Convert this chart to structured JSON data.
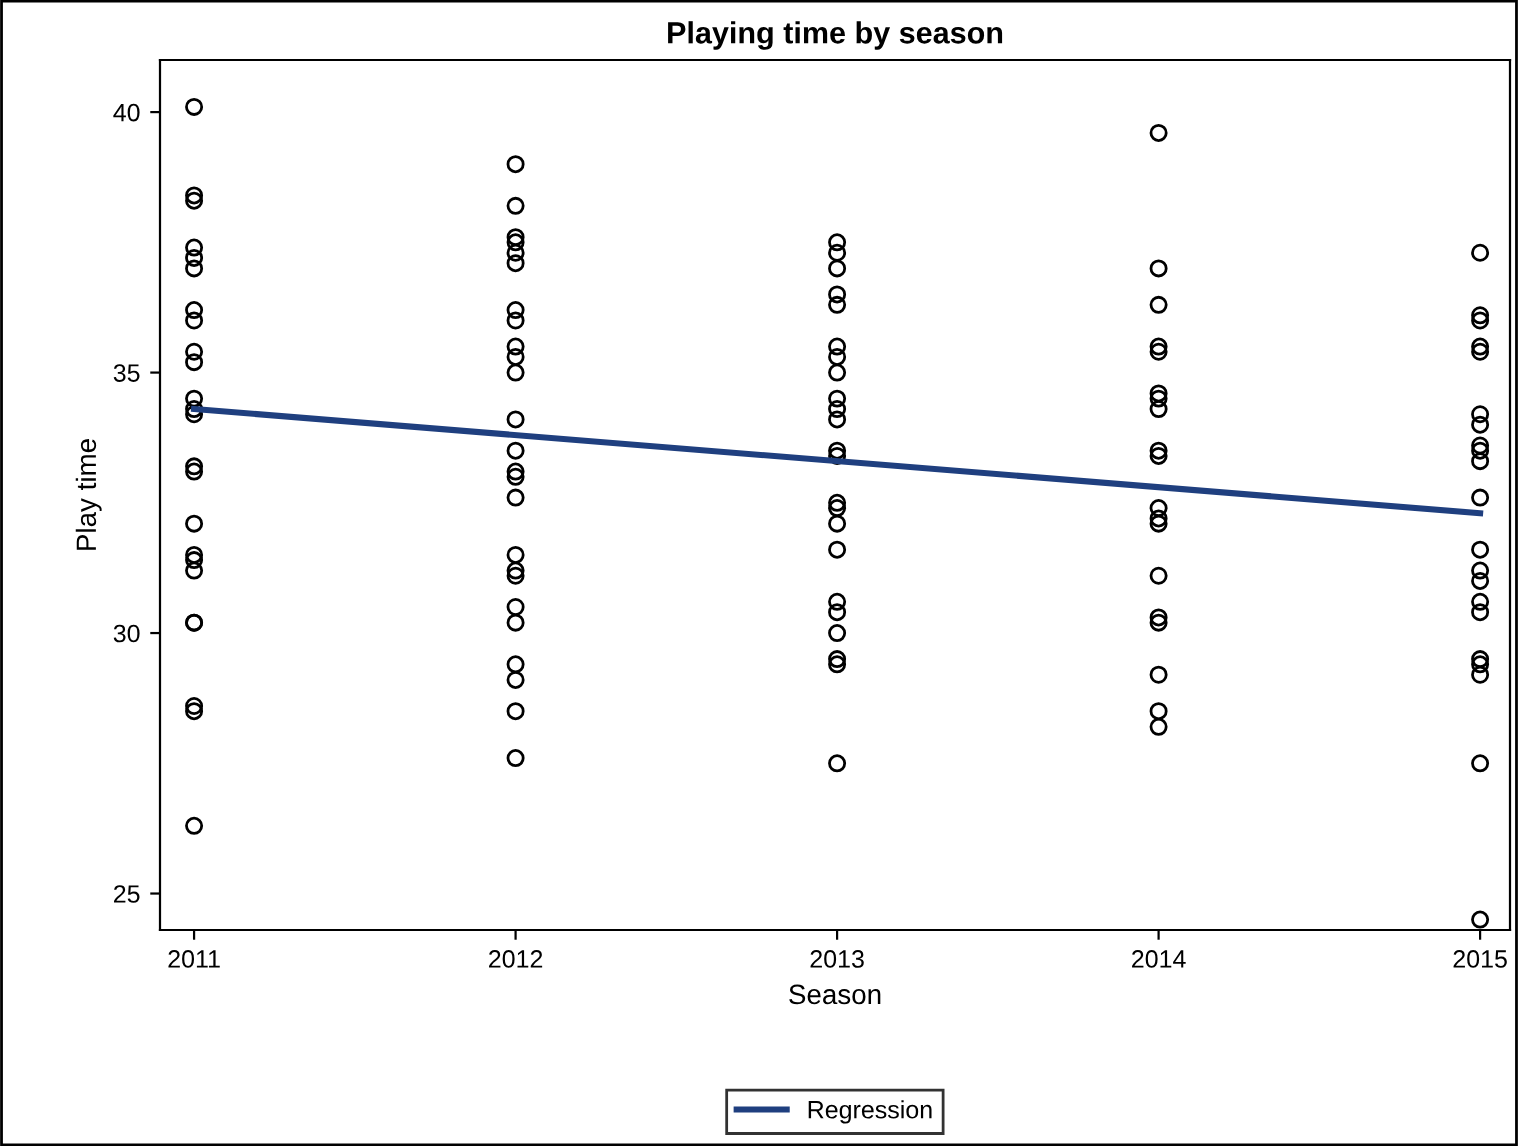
{
  "chart_data": {
    "type": "scatter",
    "title": "Playing time by season",
    "xlabel": "Season",
    "ylabel": "Play time",
    "xlim": [
      2010.894,
      2015.093
    ],
    "xticks": [
      2011,
      2012,
      2013,
      2014,
      2015
    ],
    "ylim": [
      24.3,
      41.0
    ],
    "yticks": [
      25,
      30,
      35,
      40
    ],
    "grid": false,
    "legend": "bottom",
    "series": [
      {
        "color": "#000000",
        "marker": "circle",
        "x": [
          2011,
          2011,
          2011,
          2011,
          2011,
          2011,
          2011,
          2011,
          2011,
          2011,
          2011,
          2011,
          2011,
          2011,
          2011,
          2011,
          2011,
          2011,
          2011,
          2011,
          2011,
          2011,
          2011,
          2011,
          2012,
          2012,
          2012,
          2012,
          2012,
          2012,
          2012,
          2012,
          2012,
          2012,
          2012,
          2012,
          2012,
          2012,
          2012,
          2012,
          2012,
          2012,
          2012,
          2012,
          2012,
          2012,
          2012,
          2012,
          2012,
          2013,
          2013,
          2013,
          2013,
          2013,
          2013,
          2013,
          2013,
          2013,
          2013,
          2013,
          2013,
          2013,
          2013,
          2013,
          2013,
          2013,
          2013,
          2013,
          2013,
          2013,
          2013,
          2013,
          2014,
          2014,
          2014,
          2014,
          2014,
          2014,
          2014,
          2014,
          2014,
          2014,
          2014,
          2014,
          2014,
          2014,
          2014,
          2014,
          2014,
          2014,
          2014,
          2015,
          2015,
          2015,
          2015,
          2015,
          2015,
          2015,
          2015,
          2015,
          2015,
          2015,
          2015,
          2015,
          2015,
          2015,
          2015,
          2015,
          2015,
          2015,
          2015,
          2015
        ],
        "values": [
          40.1,
          38.4,
          38.3,
          37.4,
          37.2,
          37.0,
          36.2,
          36.0,
          35.4,
          35.2,
          34.5,
          34.3,
          34.2,
          33.2,
          33.1,
          32.1,
          31.5,
          31.4,
          31.2,
          30.2,
          30.2,
          28.6,
          28.5,
          26.3,
          39.0,
          38.2,
          37.6,
          37.5,
          37.3,
          37.1,
          36.2,
          36.0,
          35.5,
          35.3,
          35.0,
          34.1,
          33.5,
          33.1,
          33.0,
          32.6,
          31.5,
          31.2,
          31.1,
          30.5,
          30.2,
          29.4,
          29.1,
          28.5,
          27.6,
          37.5,
          37.3,
          37.0,
          36.5,
          36.3,
          35.5,
          35.3,
          35.0,
          34.5,
          34.3,
          34.1,
          33.5,
          33.4,
          32.5,
          32.4,
          32.1,
          31.6,
          30.6,
          30.4,
          30.0,
          29.5,
          29.4,
          27.5,
          39.6,
          37.0,
          36.3,
          35.5,
          35.4,
          34.6,
          34.5,
          34.3,
          33.5,
          33.4,
          32.4,
          32.2,
          32.1,
          31.1,
          30.3,
          30.2,
          29.2,
          28.5,
          28.2,
          37.3,
          36.1,
          36.0,
          35.5,
          35.4,
          34.2,
          34.0,
          33.6,
          33.5,
          33.3,
          32.6,
          31.6,
          31.2,
          31.0,
          30.6,
          30.4,
          29.5,
          29.4,
          29.2,
          27.5,
          24.5
        ]
      },
      {
        "type": "line",
        "name": "Regression",
        "color": "#1f3f7f",
        "marker": "none",
        "line_style": "solid",
        "x": [
          2011,
          2015
        ],
        "values": [
          34.3,
          32.3
        ]
      }
    ]
  }
}
